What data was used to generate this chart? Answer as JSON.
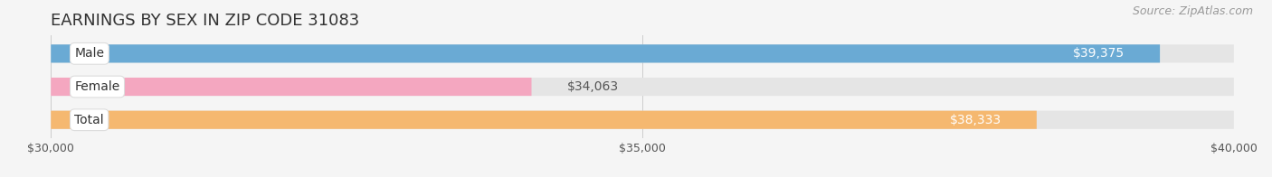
{
  "title": "EARNINGS BY SEX IN ZIP CODE 31083",
  "source": "Source: ZipAtlas.com",
  "categories": [
    "Male",
    "Female",
    "Total"
  ],
  "values": [
    39375,
    34063,
    38333
  ],
  "bar_colors": [
    "#6aaad4",
    "#f4a7c0",
    "#f5b870"
  ],
  "label_values": [
    "$39,375",
    "$34,063",
    "$38,333"
  ],
  "label_inside": [
    true,
    false,
    true
  ],
  "xmin": 30000,
  "xmax": 40000,
  "xticks": [
    30000,
    35000,
    40000
  ],
  "xtick_labels": [
    "$30,000",
    "$35,000",
    "$40,000"
  ],
  "background_color": "#f5f5f5",
  "bar_bg_color": "#e5e5e5",
  "label_inside_color": "#ffffff",
  "label_outside_color": "#555555",
  "title_fontsize": 13,
  "source_fontsize": 9,
  "bar_label_fontsize": 10,
  "category_fontsize": 10,
  "tick_fontsize": 9,
  "bar_height": 0.55
}
